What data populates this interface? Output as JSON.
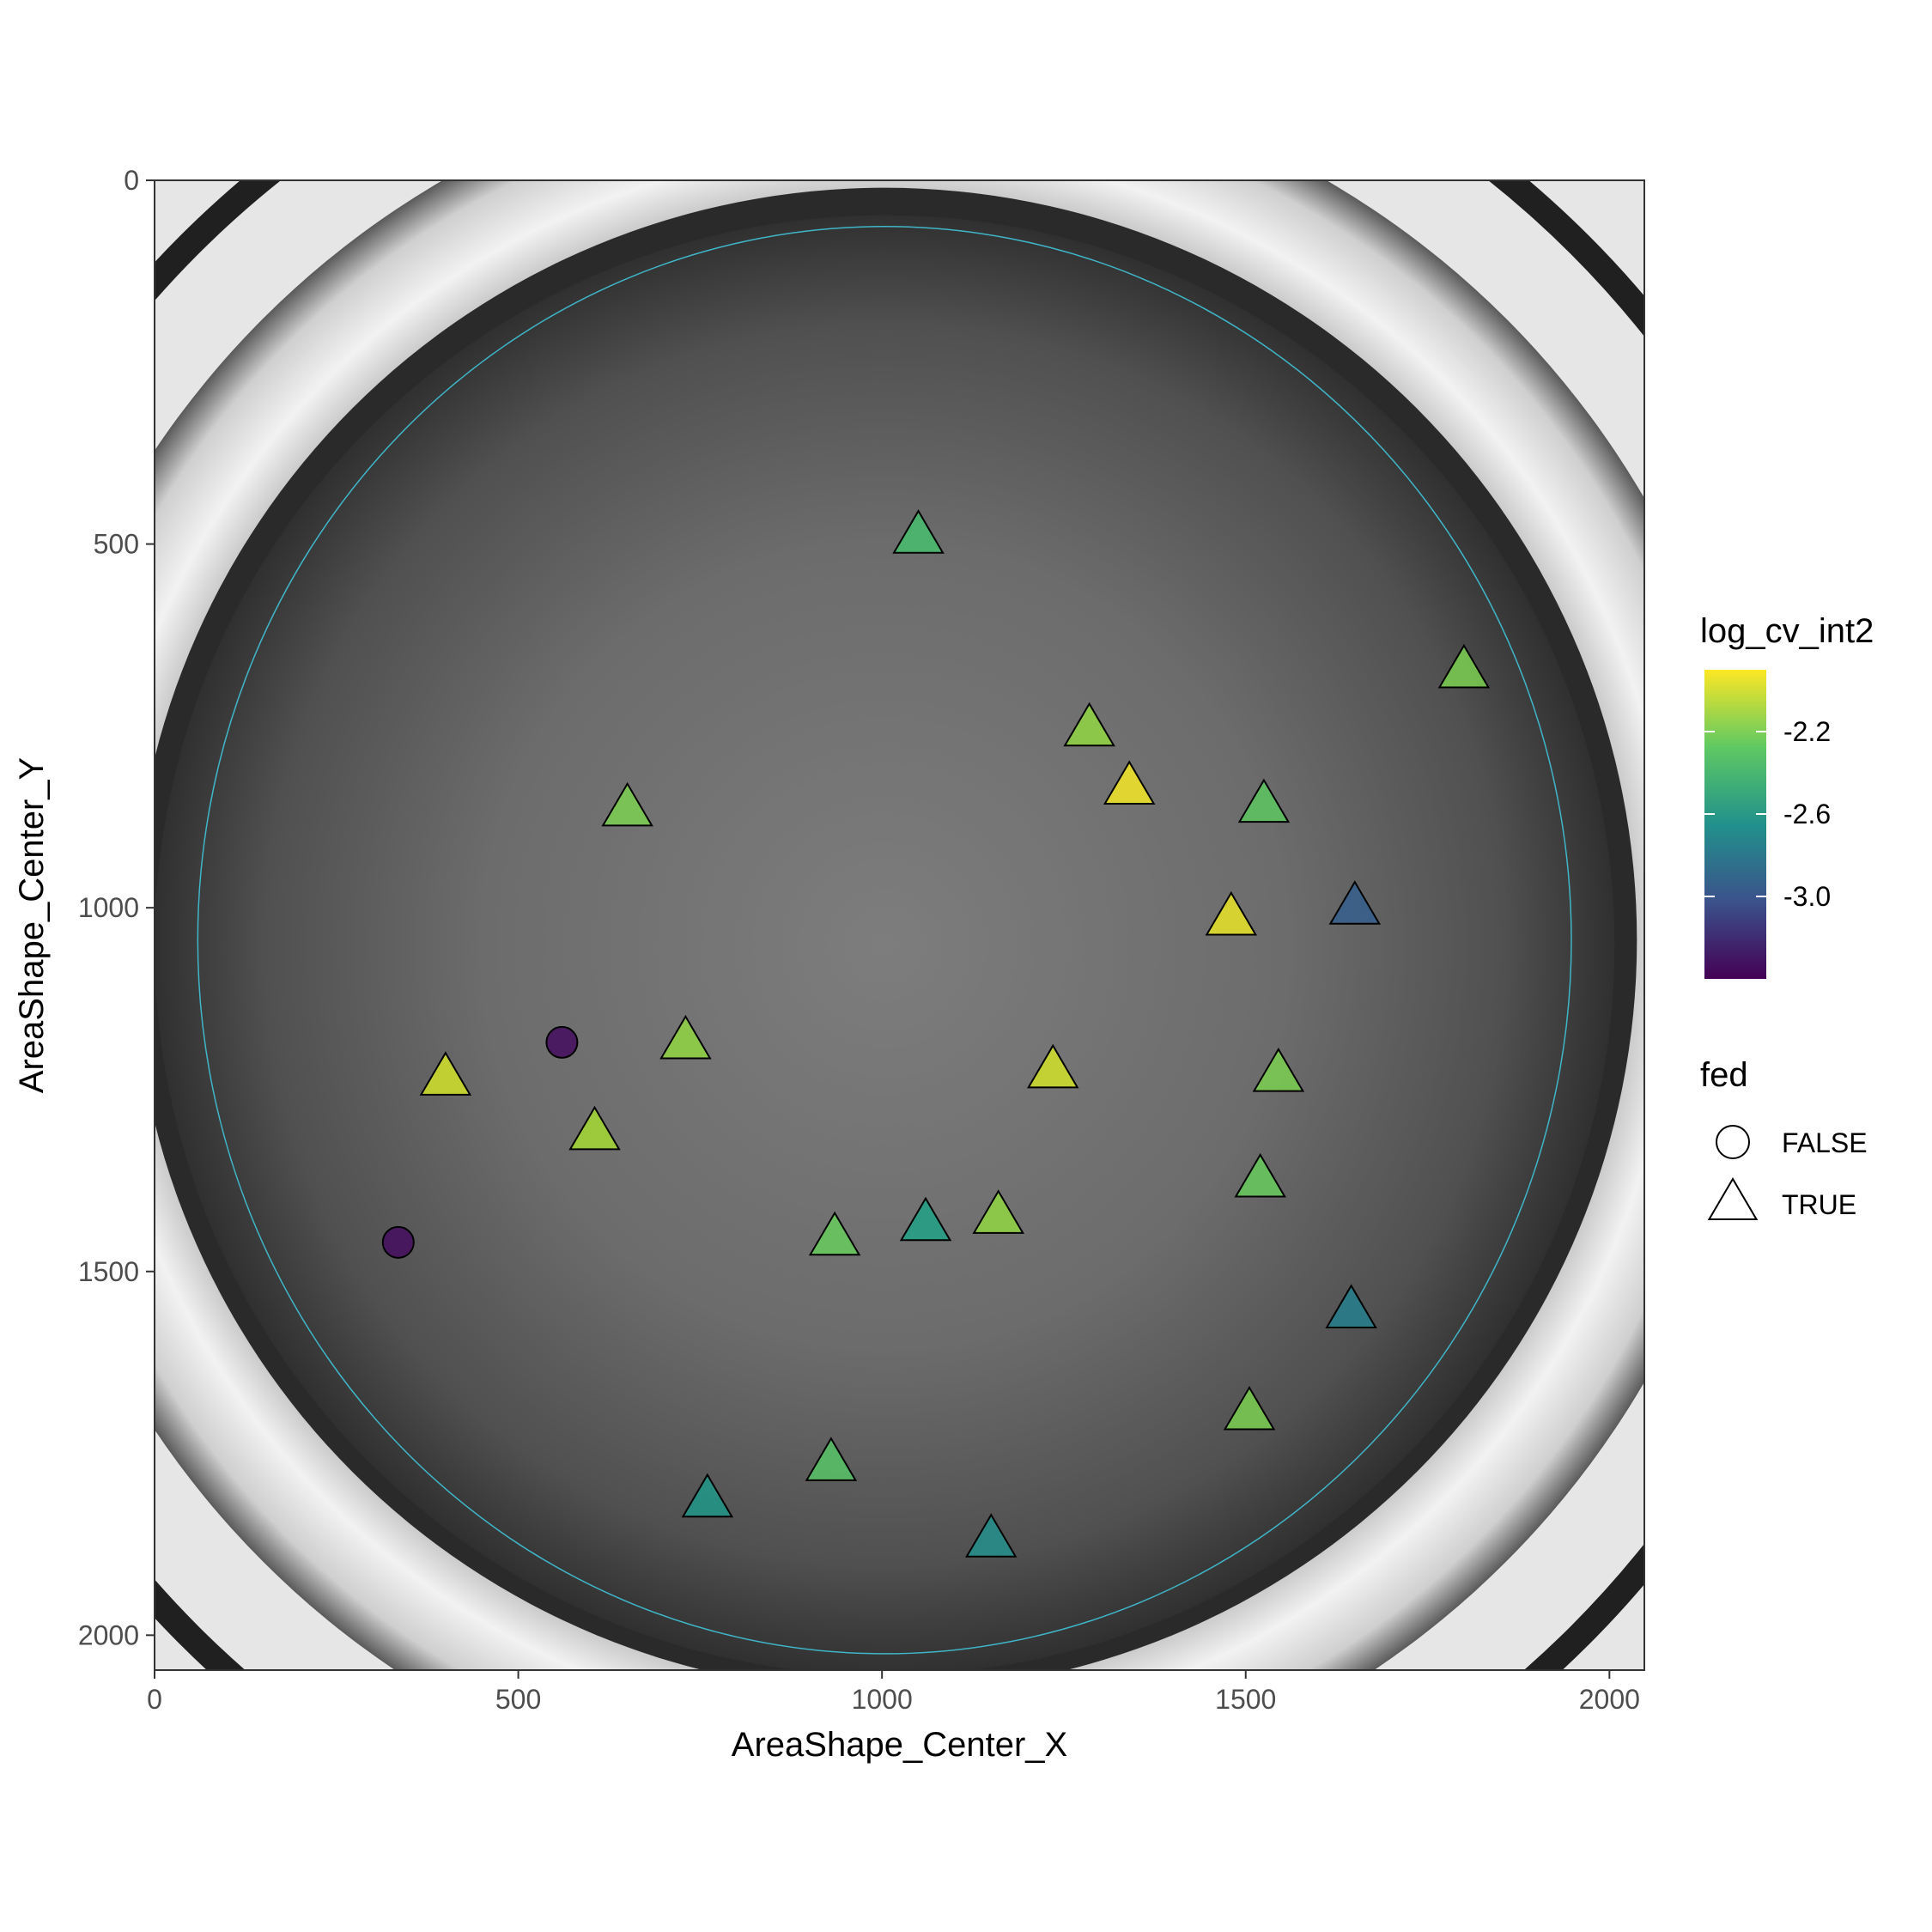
{
  "chart_data": {
    "type": "scatter",
    "title": "",
    "xlabel": "AreaShape_Center_X",
    "ylabel": "AreaShape_Center_Y",
    "xlim": [
      0,
      2048
    ],
    "ylim": [
      0,
      2048
    ],
    "y_reversed": true,
    "x_ticks": [
      0,
      500,
      1000,
      1500,
      2000
    ],
    "y_ticks": [
      0,
      500,
      1000,
      1500,
      2000
    ],
    "x_tick_labels": [
      "0",
      "500",
      "1000",
      "1500",
      "2000"
    ],
    "y_tick_labels": [
      "0",
      "500",
      "1000",
      "1500",
      "2000"
    ],
    "grid": false,
    "background": "grayscale microscopy image of a well with worms",
    "color_legend": {
      "title": "log_cv_int2",
      "type": "colorbar",
      "palette": "viridis",
      "range": [
        -3.4,
        -1.9
      ],
      "ticks": [
        -3.0,
        -2.6,
        -2.2
      ],
      "tick_labels": [
        "-3.0",
        "-2.6",
        "-2.2"
      ]
    },
    "shape_legend": {
      "title": "fed",
      "entries": [
        {
          "label": "FALSE",
          "shape": "circle"
        },
        {
          "label": "TRUE",
          "shape": "triangle"
        }
      ]
    },
    "legend_position": "right",
    "points": [
      {
        "x": 1050,
        "y": 490,
        "fed": true,
        "log_cv_int2": -2.35
      },
      {
        "x": 1800,
        "y": 675,
        "fed": true,
        "log_cv_int2": -2.2
      },
      {
        "x": 1285,
        "y": 755,
        "fed": true,
        "log_cv_int2": -2.15
      },
      {
        "x": 1340,
        "y": 835,
        "fed": true,
        "log_cv_int2": -1.92
      },
      {
        "x": 650,
        "y": 865,
        "fed": true,
        "log_cv_int2": -2.2
      },
      {
        "x": 1525,
        "y": 860,
        "fed": true,
        "log_cv_int2": -2.28
      },
      {
        "x": 1650,
        "y": 1000,
        "fed": true,
        "log_cv_int2": -2.95
      },
      {
        "x": 1480,
        "y": 1015,
        "fed": true,
        "log_cv_int2": -1.95
      },
      {
        "x": 560,
        "y": 1185,
        "fed": false,
        "log_cv_int2": -3.35
      },
      {
        "x": 730,
        "y": 1185,
        "fed": true,
        "log_cv_int2": -2.15
      },
      {
        "x": 400,
        "y": 1235,
        "fed": true,
        "log_cv_int2": -2.0
      },
      {
        "x": 1235,
        "y": 1225,
        "fed": true,
        "log_cv_int2": -2.0
      },
      {
        "x": 1545,
        "y": 1230,
        "fed": true,
        "log_cv_int2": -2.2
      },
      {
        "x": 605,
        "y": 1310,
        "fed": true,
        "log_cv_int2": -2.1
      },
      {
        "x": 1520,
        "y": 1375,
        "fed": true,
        "log_cv_int2": -2.25
      },
      {
        "x": 1160,
        "y": 1425,
        "fed": true,
        "log_cv_int2": -2.15
      },
      {
        "x": 1060,
        "y": 1435,
        "fed": true,
        "log_cv_int2": -2.55
      },
      {
        "x": 935,
        "y": 1455,
        "fed": true,
        "log_cv_int2": -2.25
      },
      {
        "x": 335,
        "y": 1460,
        "fed": false,
        "log_cv_int2": -3.35
      },
      {
        "x": 1645,
        "y": 1555,
        "fed": true,
        "log_cv_int2": -2.75
      },
      {
        "x": 1505,
        "y": 1695,
        "fed": true,
        "log_cv_int2": -2.2
      },
      {
        "x": 930,
        "y": 1765,
        "fed": true,
        "log_cv_int2": -2.3
      },
      {
        "x": 760,
        "y": 1815,
        "fed": true,
        "log_cv_int2": -2.6
      },
      {
        "x": 1150,
        "y": 1870,
        "fed": true,
        "log_cv_int2": -2.65
      }
    ]
  }
}
